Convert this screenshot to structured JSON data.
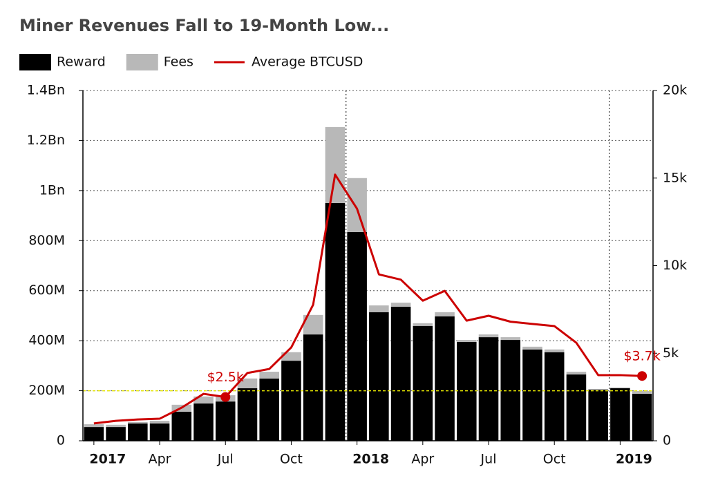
{
  "chart_data": {
    "type": "bar",
    "title": "Miner Revenues Fall to 19-Month Low...",
    "categories": [
      "2017",
      null,
      null,
      "Apr",
      null,
      null,
      "Jul",
      null,
      null,
      "Oct",
      null,
      null,
      "2018",
      null,
      null,
      "Apr",
      null,
      null,
      "Jul",
      null,
      null,
      "Oct",
      null,
      null,
      "2019",
      null
    ],
    "stacked": true,
    "series": [
      {
        "name": "Reward",
        "color": "#000000",
        "values": [
          55000000,
          55000000,
          69000000,
          69000000,
          116000000,
          149000000,
          157000000,
          210000000,
          249000000,
          320000000,
          425000000,
          950000000,
          834000000,
          514000000,
          536000000,
          459000000,
          497000000,
          395000000,
          414000000,
          403000000,
          365000000,
          354000000,
          265000000,
          204000000,
          210000000,
          188000000
        ]
      },
      {
        "name": "Fees",
        "color": "#b8b8b8",
        "values": [
          11000000,
          9000000,
          6000000,
          11000000,
          28000000,
          28000000,
          25000000,
          39000000,
          27000000,
          34000000,
          78000000,
          304000000,
          216000000,
          27000000,
          16000000,
          11000000,
          17000000,
          8000000,
          11000000,
          11000000,
          11000000,
          11000000,
          11000000,
          3000000,
          3000000,
          11000000
        ]
      },
      {
        "name": "Average BTCUSD",
        "type": "line",
        "axis": "y2",
        "color": "#cc0000",
        "values": [
          990,
          1140,
          1220,
          1260,
          1890,
          2680,
          2500,
          3870,
          4100,
          5330,
          7770,
          15200,
          13250,
          9500,
          9200,
          8000,
          8560,
          6860,
          7140,
          6800,
          6670,
          6550,
          5600,
          3750,
          3750,
          3700
        ],
        "value_labels": [
          null,
          null,
          null,
          null,
          null,
          null,
          "$2.5k",
          null,
          null,
          null,
          null,
          null,
          null,
          null,
          null,
          null,
          null,
          null,
          null,
          null,
          null,
          null,
          null,
          null,
          null,
          "$3.7k"
        ]
      }
    ],
    "ylim": [
      0,
      1400000000
    ],
    "yticks": [
      0,
      {
        "value": 200000000,
        "label": "200M"
      },
      {
        "value": 400000000,
        "label": "400M"
      },
      {
        "value": 600000000,
        "label": "600M"
      },
      {
        "value": 800000000,
        "label": "800M"
      },
      {
        "value": 1000000000,
        "label": "1Bn"
      },
      {
        "value": 1200000000,
        "label": "1.2Bn"
      },
      {
        "value": 1400000000,
        "label": "1.4Bn"
      }
    ],
    "y2lim": [
      0,
      20000
    ],
    "y2ticks": [
      0,
      {
        "value": 5000,
        "label": "5k"
      },
      {
        "value": 10000,
        "label": "10k"
      },
      {
        "value": 15000,
        "label": "15k"
      },
      {
        "value": 20000,
        "label": "20k"
      }
    ],
    "hline": {
      "value": 200000000,
      "color": "#e6e600"
    },
    "grid": true,
    "legend": "top-left"
  }
}
